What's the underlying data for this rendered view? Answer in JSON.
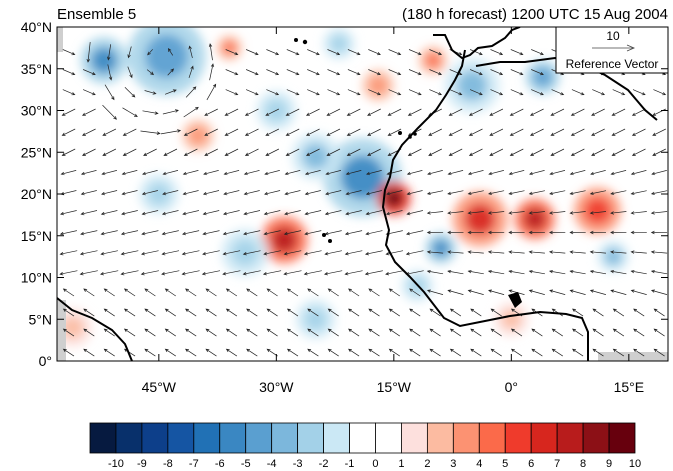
{
  "header": {
    "left_title": "Ensemble 5",
    "right_title": "(180 h forecast) 1200 UTC 15 Aug 2004"
  },
  "map": {
    "lat_range": [
      0,
      40
    ],
    "lon_range": [
      -58,
      20
    ],
    "lat_labels": [
      "0°",
      "5°N",
      "10°N",
      "15°N",
      "20°N",
      "25°N",
      "30°N",
      "35°N",
      "40°N"
    ],
    "lat_values": [
      0,
      5,
      10,
      15,
      20,
      25,
      30,
      35,
      40
    ],
    "lon_labels": [
      "45°W",
      "30°W",
      "15°W",
      "0°",
      "15°E"
    ],
    "lon_values": [
      -45,
      -30,
      -15,
      0,
      15
    ],
    "reference_vector": {
      "magnitude": "10",
      "label": "Reference Vector"
    }
  },
  "colorbar": {
    "labels": [
      "-10",
      "-9",
      "-8",
      "-7",
      "-6",
      "-5",
      "-4",
      "-3",
      "-2",
      "-1",
      "0",
      "1",
      "2",
      "3",
      "4",
      "5",
      "6",
      "7",
      "8",
      "9",
      "10"
    ],
    "colors": [
      "#061a40",
      "#08306b",
      "#0d3f8a",
      "#1555a3",
      "#2171b5",
      "#3a87c2",
      "#5a9fd0",
      "#7cb7dc",
      "#a3d1e8",
      "#cbe8f5",
      "#ffffff",
      "#ffffff",
      "#fde0dd",
      "#fcbba1",
      "#fc9272",
      "#fb6a4a",
      "#ef3b2c",
      "#d7261e",
      "#b81c1c",
      "#8c1016",
      "#67000d"
    ]
  },
  "anomalies": [
    {
      "lon": -44,
      "lat": 36.5,
      "r": 5,
      "v": -4
    },
    {
      "lon": -52,
      "lat": 36,
      "r": 3,
      "v": -5
    },
    {
      "lon": -36,
      "lat": 37.5,
      "r": 1.6,
      "v": 4
    },
    {
      "lon": -19,
      "lat": 22,
      "r": 5,
      "v": -5
    },
    {
      "lon": -25,
      "lat": 24.5,
      "r": 3,
      "v": -3
    },
    {
      "lon": -29,
      "lat": 14.5,
      "r": 3,
      "v": 7
    },
    {
      "lon": -34,
      "lat": 13,
      "r": 3,
      "v": -2
    },
    {
      "lon": -15,
      "lat": 19.5,
      "r": 2.2,
      "v": 9
    },
    {
      "lon": -4,
      "lat": 17,
      "r": 3.5,
      "v": 6
    },
    {
      "lon": 3,
      "lat": 17,
      "r": 2.6,
      "v": 7
    },
    {
      "lon": 11,
      "lat": 18,
      "r": 3,
      "v": 5
    },
    {
      "lon": -9,
      "lat": 13.5,
      "r": 2,
      "v": -5
    },
    {
      "lon": -5,
      "lat": 33,
      "r": 3.5,
      "v": -3
    },
    {
      "lon": 4,
      "lat": 34,
      "r": 2.2,
      "v": -4
    },
    {
      "lon": -10,
      "lat": 36,
      "r": 1.8,
      "v": 4
    },
    {
      "lon": -17,
      "lat": 33,
      "r": 2,
      "v": 3
    },
    {
      "lon": -40,
      "lat": 27,
      "r": 2,
      "v": 3
    },
    {
      "lon": -22,
      "lat": 38,
      "r": 2,
      "v": -2
    },
    {
      "lon": -30,
      "lat": 30,
      "r": 2.5,
      "v": -2
    },
    {
      "lon": -56,
      "lat": 4,
      "r": 2.5,
      "v": 2
    },
    {
      "lon": -12,
      "lat": 9,
      "r": 2,
      "v": -2
    },
    {
      "lon": 13,
      "lat": 12.5,
      "r": 2,
      "v": -3
    },
    {
      "lon": -45,
      "lat": 20,
      "r": 2.5,
      "v": -2
    },
    {
      "lon": 0,
      "lat": 5,
      "r": 2.2,
      "v": 2
    },
    {
      "lon": -25,
      "lat": 5,
      "r": 2.5,
      "v": -2
    }
  ]
}
